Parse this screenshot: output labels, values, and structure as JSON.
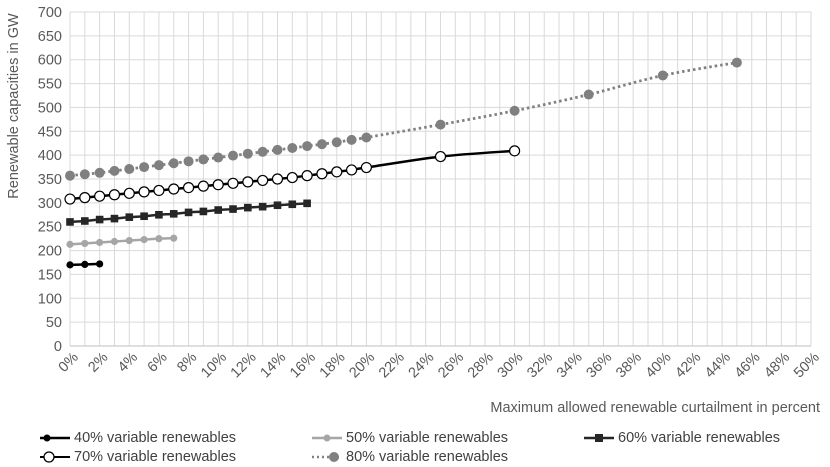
{
  "chart_data": {
    "type": "line",
    "title": "",
    "xlabel": "Maximum allowed renewable curtailment in percent",
    "ylabel": "Renewable capacities in GW",
    "xlim": [
      0,
      50
    ],
    "ylim": [
      0,
      700
    ],
    "x_ticks": [
      0,
      2,
      4,
      6,
      8,
      10,
      12,
      14,
      16,
      18,
      20,
      22,
      24,
      26,
      28,
      30,
      32,
      34,
      36,
      38,
      40,
      42,
      44,
      46,
      48,
      50
    ],
    "x_tick_labels": [
      "0%",
      "2%",
      "4%",
      "6%",
      "8%",
      "10%",
      "12%",
      "14%",
      "16%",
      "18%",
      "20%",
      "22%",
      "24%",
      "26%",
      "28%",
      "30%",
      "32%",
      "34%",
      "36%",
      "38%",
      "40%",
      "42%",
      "44%",
      "46%",
      "48%",
      "50%"
    ],
    "y_ticks": [
      0,
      50,
      100,
      150,
      200,
      250,
      300,
      350,
      400,
      450,
      500,
      550,
      600,
      650,
      700
    ],
    "y_tick_labels": [
      "0",
      "50",
      "100",
      "150",
      "200",
      "250",
      "300",
      "350",
      "400",
      "450",
      "500",
      "550",
      "600",
      "650",
      "700"
    ],
    "grid": true,
    "legend_position": "bottom",
    "series": [
      {
        "name": "40% variable renewables",
        "color": "#000000",
        "marker": "filled-circle",
        "line_style": "solid",
        "x": [
          0,
          1,
          2
        ],
        "y": [
          170,
          171,
          172
        ]
      },
      {
        "name": "50% variable renewables",
        "color": "#a6a6a6",
        "marker": "filled-circle",
        "line_style": "solid",
        "x": [
          0,
          1,
          2,
          3,
          4,
          5,
          6,
          7
        ],
        "y": [
          213,
          215,
          217,
          219,
          221,
          223,
          225,
          226
        ]
      },
      {
        "name": "60% variable renewables",
        "color": "#262626",
        "marker": "filled-square",
        "line_style": "solid",
        "x": [
          0,
          1,
          2,
          3,
          4,
          5,
          6,
          7,
          8,
          9,
          10,
          11,
          12,
          13,
          14,
          15,
          16
        ],
        "y": [
          260,
          262,
          265,
          267,
          270,
          272,
          275,
          277,
          280,
          282,
          285,
          287,
          290,
          292,
          295,
          297,
          299
        ]
      },
      {
        "name": "70% variable renewables",
        "color": "#000000",
        "marker": "open-circle",
        "line_style": "solid",
        "x": [
          0,
          1,
          2,
          3,
          4,
          5,
          6,
          7,
          8,
          9,
          10,
          11,
          12,
          13,
          14,
          15,
          16,
          17,
          18,
          19,
          20,
          25,
          30
        ],
        "y": [
          308,
          311,
          314,
          317,
          320,
          323,
          326,
          329,
          332,
          335,
          338,
          341,
          344,
          347,
          350,
          353,
          357,
          361,
          365,
          369,
          374,
          397,
          409
        ]
      },
      {
        "name": "80% variable renewables",
        "color": "#808080",
        "marker": "filled-circle",
        "line_style": "dotted",
        "x": [
          0,
          1,
          2,
          3,
          4,
          5,
          6,
          7,
          8,
          9,
          10,
          11,
          12,
          13,
          14,
          15,
          16,
          17,
          18,
          19,
          20,
          25,
          30,
          35,
          40,
          45
        ],
        "y": [
          357,
          360,
          363,
          367,
          371,
          375,
          379,
          383,
          387,
          391,
          395,
          399,
          403,
          407,
          411,
          415,
          419,
          423,
          427,
          432,
          437,
          464,
          493,
          527,
          567,
          594
        ]
      }
    ]
  }
}
